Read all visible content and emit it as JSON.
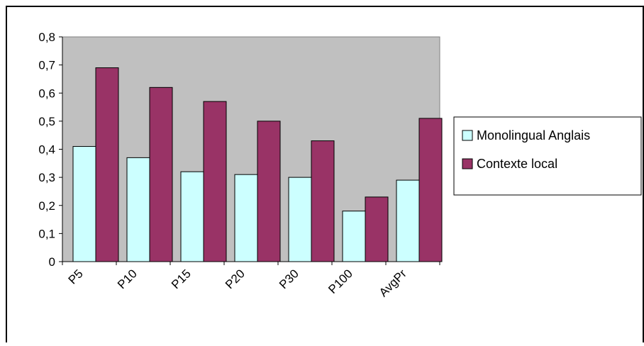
{
  "chart_data": {
    "type": "bar",
    "categories": [
      "P5",
      "P10",
      "P15",
      "P20",
      "P30",
      "P100",
      "AvgPr"
    ],
    "series": [
      {
        "name": "Monolingual Anglais",
        "values": [
          0.41,
          0.37,
          0.32,
          0.31,
          0.3,
          0.18,
          0.29
        ],
        "color": "#ccffff"
      },
      {
        "name": "Contexte local",
        "values": [
          0.69,
          0.62,
          0.57,
          0.5,
          0.43,
          0.23,
          0.51
        ],
        "color": "#993366"
      }
    ],
    "ylim": [
      0,
      0.8
    ],
    "yticks": [
      "0",
      "0,1",
      "0,2",
      "0,3",
      "0,4",
      "0,5",
      "0,6",
      "0,7",
      "0,8"
    ],
    "plot_background": "#c0c0c0",
    "grid": false,
    "legend_position": "right",
    "title": "",
    "xlabel": "",
    "ylabel": ""
  }
}
